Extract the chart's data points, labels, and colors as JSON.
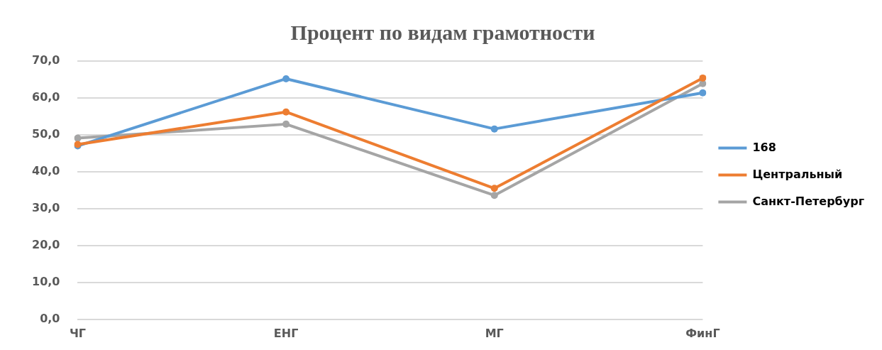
{
  "chart_data": {
    "type": "line",
    "title": "Процент по видам грамотности",
    "categories": [
      "ЧГ",
      "ЕНГ",
      "МГ",
      "ФинГ"
    ],
    "series": [
      {
        "name": "168",
        "color": "#5b9bd5",
        "values": [
          47.0,
          65.2,
          51.6,
          61.4
        ]
      },
      {
        "name": "Центральный",
        "color": "#ed7d31",
        "values": [
          47.4,
          56.2,
          35.5,
          65.4
        ]
      },
      {
        "name": "Санкт-Петербург",
        "color": "#a5a5a5",
        "values": [
          49.1,
          52.9,
          33.6,
          63.9
        ]
      }
    ],
    "ylim": [
      0,
      70
    ],
    "yticks": [
      {
        "value": 0,
        "label": "0,0"
      },
      {
        "value": 10,
        "label": "10,0"
      },
      {
        "value": 20,
        "label": "20,0"
      },
      {
        "value": 30,
        "label": "30,0"
      },
      {
        "value": 40,
        "label": "40,0"
      },
      {
        "value": 50,
        "label": "50,0"
      },
      {
        "value": 60,
        "label": "60,0"
      },
      {
        "value": 70,
        "label": "70,0"
      }
    ],
    "grid": "y",
    "legend": "right",
    "marker": "circle",
    "line_style": "solid"
  }
}
